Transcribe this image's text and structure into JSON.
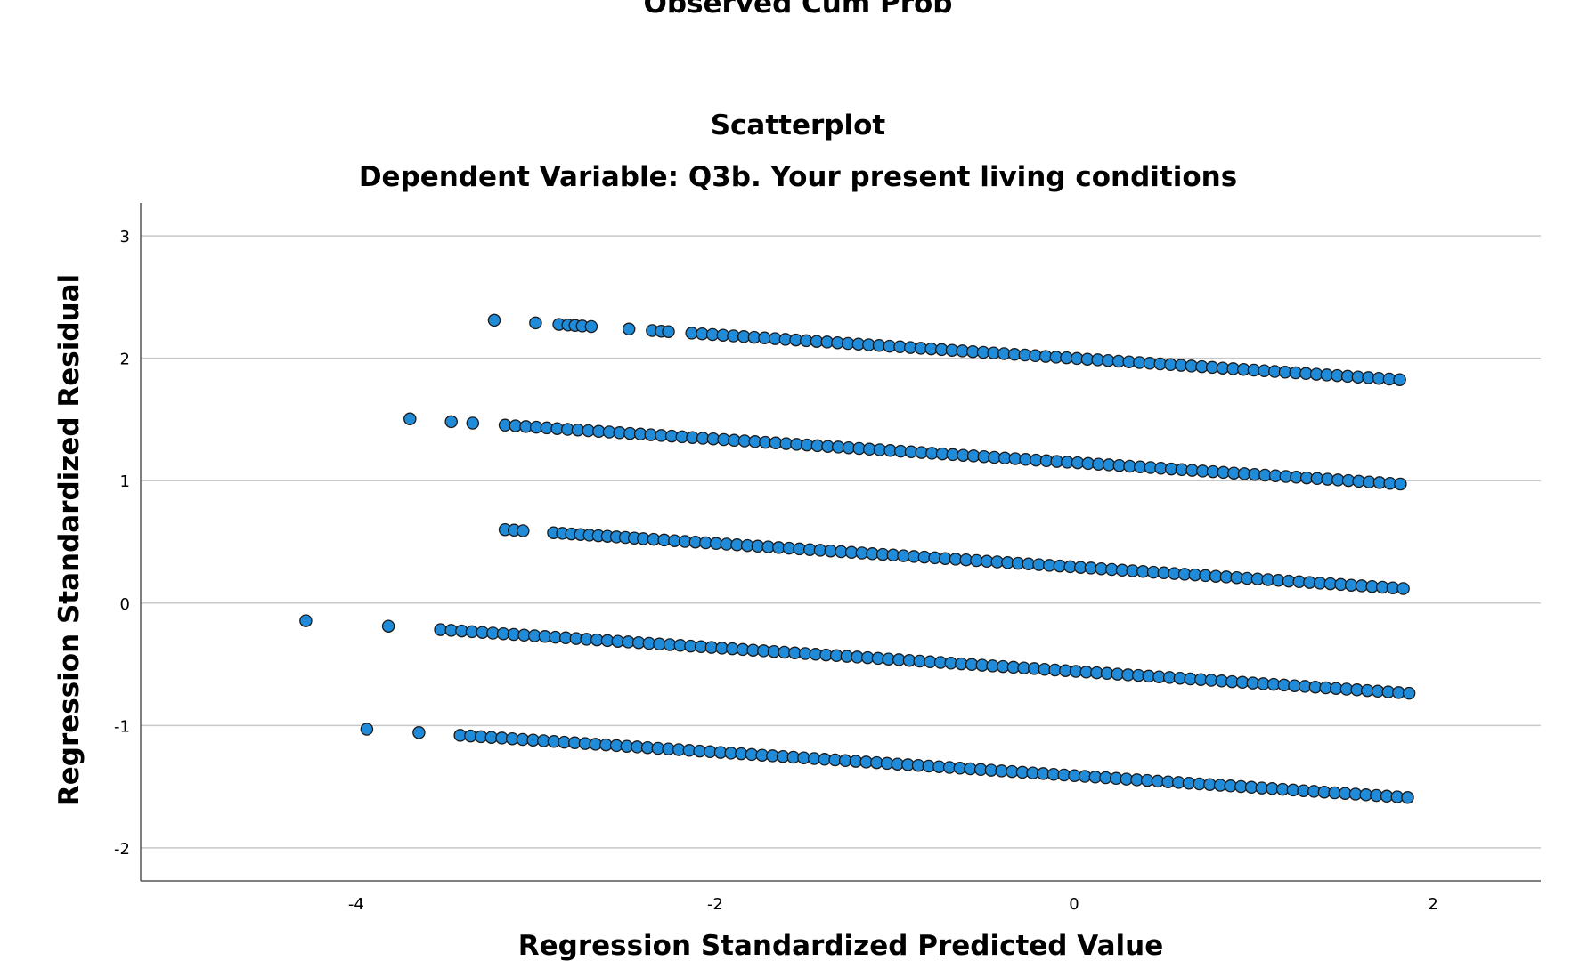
{
  "previous_chart": {
    "xlabel": "Observed Cum Prob"
  },
  "chart_data": {
    "type": "scatter",
    "title": "Scatterplot",
    "subtitle": "Dependent Variable: Q3b. Your present living conditions",
    "xlabel": "Regression Standardized Predicted Value",
    "ylabel": "Regression Standardized Residual",
    "xlim": [
      -5.2,
      2.6
    ],
    "ylim": [
      -2.27,
      3.27
    ],
    "xticks": [
      -4,
      -2,
      0,
      2
    ],
    "yticks": [
      3,
      2,
      1,
      0,
      -1,
      -2
    ],
    "grid": "horizontal",
    "marker_color": "#1f8bd9",
    "marker_edge": "#1a1a1a",
    "bands": [
      {
        "level": 5,
        "slope": -0.0964,
        "intercept": 2.0,
        "x_start": -3.23,
        "x_end": 1.87,
        "x_isolated": [
          -3.23,
          -3.0,
          -2.87,
          -2.82,
          -2.78,
          -2.74,
          -2.69,
          -2.48,
          -2.35,
          -2.3,
          -2.26,
          -2.13
        ]
      },
      {
        "level": 4,
        "slope": -0.0964,
        "intercept": 1.148,
        "x_start": -3.7,
        "x_end": 1.87,
        "x_isolated": [
          -3.7,
          -3.47,
          -3.35,
          -3.17
        ]
      },
      {
        "level": 3,
        "slope": -0.0964,
        "intercept": 0.295,
        "x_start": -3.17,
        "x_end": 1.87,
        "x_isolated": [
          -3.17,
          -3.12,
          -3.07,
          -2.9,
          -2.85,
          -2.8,
          -2.75,
          -2.7,
          -2.65,
          -2.6,
          -2.55,
          -2.5,
          -2.45,
          -2.4
        ]
      },
      {
        "level": 2,
        "slope": -0.0964,
        "intercept": -0.557,
        "x_start": -4.28,
        "x_end": 1.87,
        "x_isolated": [
          -4.28,
          -3.82,
          -3.53,
          -3.47
        ]
      },
      {
        "level": 1,
        "slope": -0.0964,
        "intercept": -1.41,
        "x_start": -3.94,
        "x_end": 1.87,
        "x_isolated": [
          -3.94,
          -3.65,
          -3.42
        ]
      }
    ]
  }
}
